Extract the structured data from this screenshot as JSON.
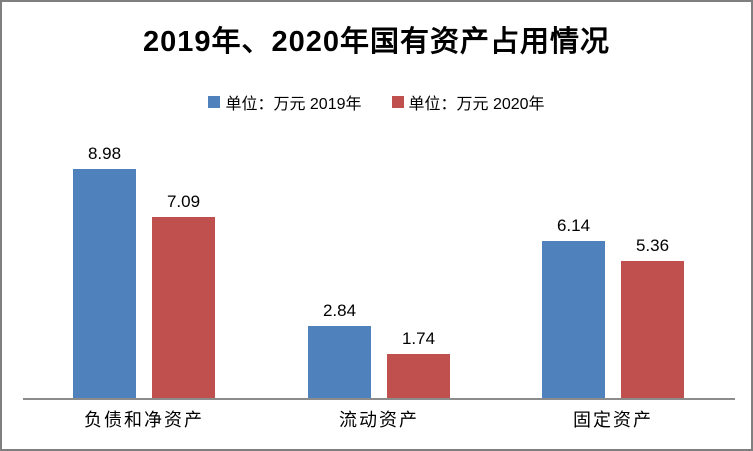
{
  "title": "2019年、2020年国有资产占用情况",
  "legend": [
    {
      "label": "单位：万元 2019年",
      "color": "#4F81BD",
      "icon": "square-swatch-icon"
    },
    {
      "label": "单位：万元 2020年",
      "color": "#C0504D",
      "icon": "square-swatch-icon"
    }
  ],
  "colors": {
    "series_2019": "#4F81BD",
    "series_2020": "#C0504D",
    "axis_line": "#8c8c8c",
    "frame_border": "#7f7f7f",
    "text": "#000000"
  },
  "chart_data": {
    "type": "bar",
    "title": "2019年、2020年国有资产占用情况",
    "categories": [
      "负债和净资产",
      "流动资产",
      "固定资产"
    ],
    "series": [
      {
        "name": "单位：万元 2019年",
        "color": "#4F81BD",
        "values": [
          8.98,
          2.84,
          6.14
        ]
      },
      {
        "name": "单位：万元 2020年",
        "color": "#C0504D",
        "values": [
          7.09,
          1.74,
          5.36
        ]
      }
    ],
    "value_labels": [
      "8.98",
      "7.09",
      "2.84",
      "1.74",
      "6.14",
      "5.36"
    ],
    "xlabel": "",
    "ylabel": "",
    "ylim": [
      0,
      10
    ],
    "grid": false,
    "y_axis_visible": false,
    "legend_position": "top"
  }
}
